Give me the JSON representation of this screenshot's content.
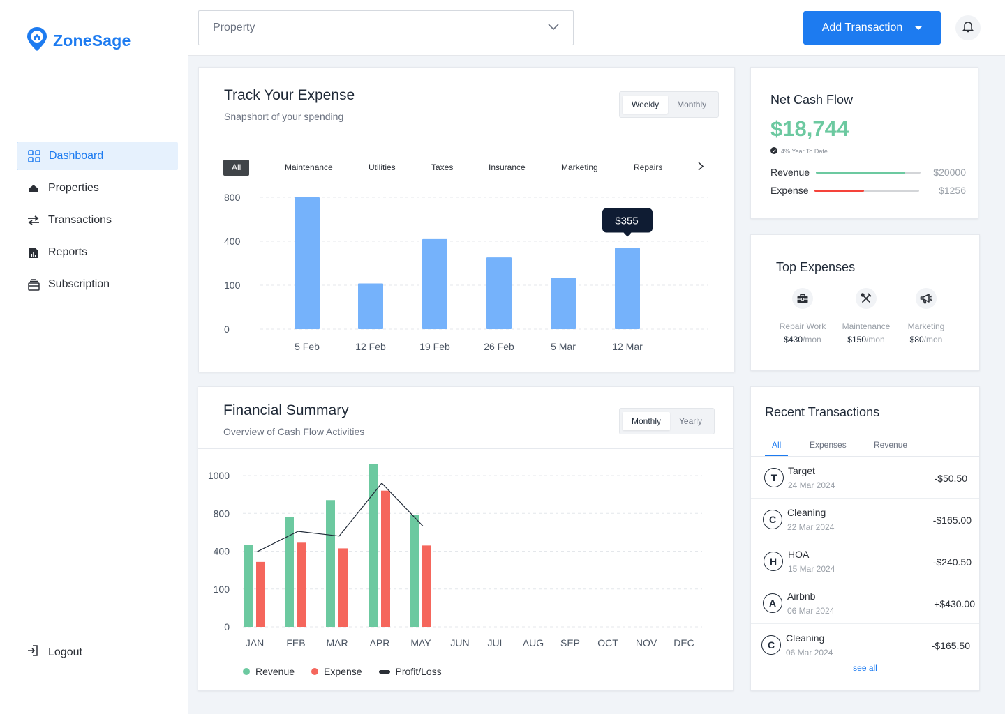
{
  "app": {
    "name": "ZoneSage"
  },
  "colors": {
    "accent": "#1d7bf0",
    "revenue": "#6cc9a0",
    "expense": "#f5665c",
    "bar": "#75b2fb"
  },
  "sidebar": {
    "items": [
      {
        "label": "Dashboard",
        "icon": "grid-icon",
        "active": true
      },
      {
        "label": "Properties",
        "icon": "home-icon",
        "active": false
      },
      {
        "label": "Transactions",
        "icon": "swap-icon",
        "active": false
      },
      {
        "label": "Reports",
        "icon": "report-icon",
        "active": false
      },
      {
        "label": "Subscription",
        "icon": "subscription-icon",
        "active": false
      }
    ],
    "logout": "Logout"
  },
  "topbar": {
    "property_placeholder": "Property",
    "add_transaction": "Add Transaction"
  },
  "expense": {
    "title": "Track Your Expense",
    "subtitle": "Snapshort of your spending",
    "toggle": [
      "Weekly",
      "Monthly"
    ],
    "toggle_selected": "Weekly",
    "categories": [
      "All",
      "Maintenance",
      "Utilities",
      "Taxes",
      "Insurance",
      "Marketing",
      "Repairs"
    ],
    "selected_category": "All",
    "tooltip": "$355"
  },
  "summary": {
    "title": "Financial Summary",
    "subtitle": "Overview of Cash Flow Activities",
    "toggle": [
      "Monthly",
      "Yearly"
    ],
    "toggle_selected": "Monthly",
    "legend": {
      "revenue": "Revenue",
      "expense": "Expense",
      "profit": "Profit/Loss"
    }
  },
  "net_cash_flow": {
    "title": "Net Cash Flow",
    "value": "$18,744",
    "ytd": "4% Year To Date",
    "revenue_label": "Revenue",
    "revenue_amount": "$20000",
    "revenue_fraction": 0.85,
    "expense_label": "Expense",
    "expense_amount": "$1256",
    "expense_fraction": 0.47
  },
  "top_expenses": {
    "title": "Top Expenses",
    "per": "/mon",
    "items": [
      {
        "name": "Repair Work",
        "amount": "$430",
        "icon": "toolbox-icon"
      },
      {
        "name": "Maintenance",
        "amount": "$150",
        "icon": "tools-icon"
      },
      {
        "name": "Marketing",
        "amount": "$80",
        "icon": "megaphone-icon"
      }
    ]
  },
  "recent": {
    "title": "Recent Transactions",
    "tabs": [
      "All",
      "Expenses",
      "Revenue"
    ],
    "selected_tab": "All",
    "rows": [
      {
        "initial": "T",
        "name": "Target",
        "date": "24 Mar 2024",
        "amount": "-$50.50"
      },
      {
        "initial": "C",
        "name": "Cleaning",
        "date": "22 Mar 2024",
        "amount": "-$165.00"
      },
      {
        "initial": "H",
        "name": "HOA",
        "date": "15 Mar 2024",
        "amount": "-$240.50"
      },
      {
        "initial": "A",
        "name": "Airbnb",
        "date": "06 Mar 2024",
        "amount": "+$430.00"
      },
      {
        "initial": "C",
        "name": "Cleaning",
        "date": "06 Mar 2024",
        "amount": "-$165.50"
      }
    ],
    "see_all": "see all"
  },
  "chart_data": [
    {
      "type": "bar",
      "categories": [
        "5 Feb",
        "12 Feb",
        "19 Feb",
        "26 Feb",
        "5 Mar",
        "12 Mar"
      ],
      "values": [
        800,
        112,
        420,
        290,
        150,
        355
      ],
      "y_ticks": [
        "0",
        "100",
        "400",
        "800"
      ],
      "y_tick_values": [
        0,
        100,
        400,
        800
      ],
      "grid": true
    },
    {
      "type": "bar",
      "categories": [
        "JAN",
        "FEB",
        "MAR",
        "APR",
        "MAY",
        "JUN",
        "JUL",
        "AUG",
        "SEP",
        "OCT",
        "NOV",
        "DEC"
      ],
      "series": [
        {
          "name": "Revenue",
          "values": [
            470,
            765,
            870,
            1060,
            780,
            null,
            null,
            null,
            null,
            null,
            null,
            null
          ]
        },
        {
          "name": "Expense",
          "values": [
            315,
            490,
            430,
            920,
            460,
            null,
            null,
            null,
            null,
            null,
            null,
            null
          ]
        },
        {
          "name": "Profit/Loss",
          "type": "line",
          "values": [
            395,
            610,
            560,
            960,
            665,
            null,
            null,
            null,
            null,
            null,
            null,
            null
          ]
        }
      ],
      "y_ticks": [
        "0",
        "100",
        "400",
        "800",
        "1000"
      ],
      "y_tick_values": [
        0,
        100,
        400,
        800,
        1000
      ],
      "grid": true,
      "legend_position": "bottom-left"
    }
  ]
}
